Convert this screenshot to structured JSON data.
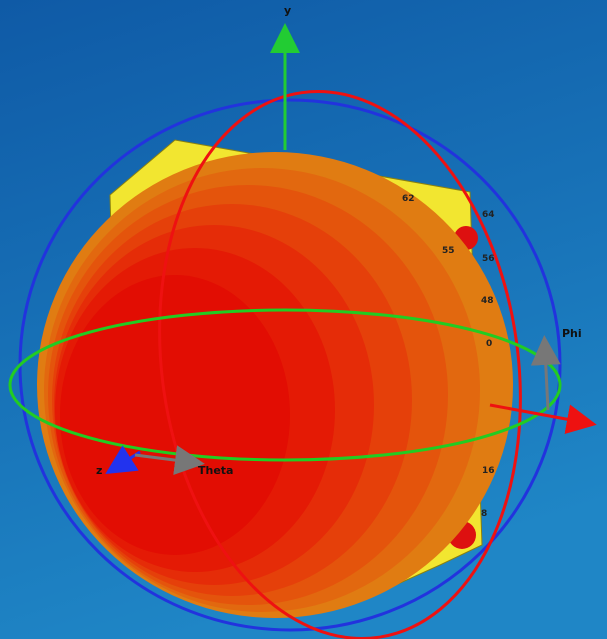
{
  "axes": {
    "y": "y",
    "z": "z",
    "phi": "Phi",
    "theta": "Theta"
  },
  "board_labels": [
    "62",
    "55",
    "64",
    "56",
    "48",
    "0",
    "16",
    "8"
  ]
}
